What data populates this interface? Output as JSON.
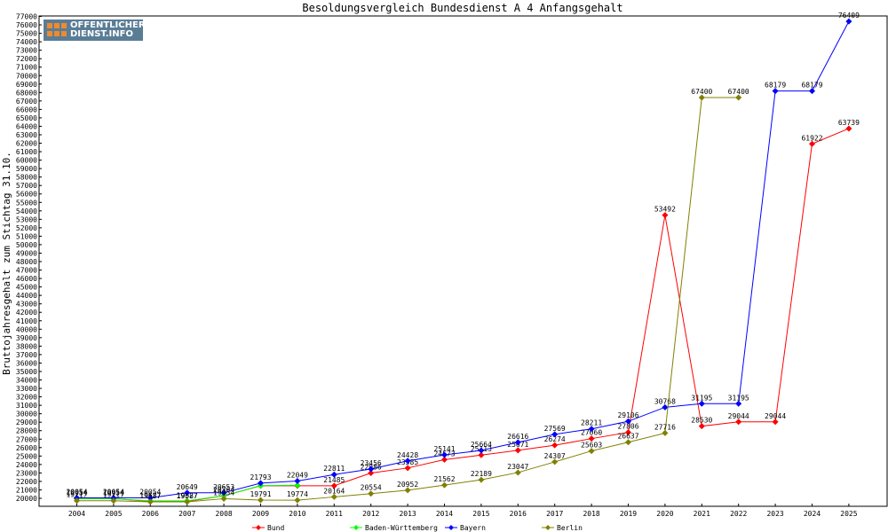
{
  "logo": {
    "line1": "OFFENTLICHER",
    "line2": "DIENST.INFO"
  },
  "chart_data": {
    "type": "line",
    "title": "Besoldungsvergleich Bundesdienst A 4 Anfangsgehalt",
    "ylabel": "Bruttojahresgehalt zum Stichtag 31.10.",
    "xlabel": "",
    "ylim": [
      20000,
      77000
    ],
    "ytick_step": 1000,
    "x": [
      "2004",
      "2005",
      "2006",
      "2007",
      "2008",
      "2009",
      "2010",
      "2011",
      "2012",
      "2013",
      "2014",
      "2015",
      "2016",
      "2017",
      "2018",
      "2019",
      "2020",
      "2021",
      "2022",
      "2023",
      "2024",
      "2025"
    ],
    "grid": false,
    "legend": "bottom",
    "series": [
      {
        "name": "Bund",
        "color": "#ff0000",
        "values": [
          19954,
          19954,
          19627,
          19627,
          20304,
          21485,
          21485,
          21485,
          22986,
          23585,
          24573,
          25113,
          25671,
          26274,
          27060,
          27806,
          53492,
          28530,
          29044,
          29044,
          61922,
          63739
        ],
        "labels": [
          "19954",
          "19954",
          "19627",
          "19627",
          "20304",
          "",
          "",
          "21485",
          "22986",
          "23585",
          "24573",
          "25113",
          "25671",
          "26274",
          "27060",
          "27806",
          "53492",
          "28530",
          "29044",
          "29044",
          "61922",
          "63739"
        ]
      },
      {
        "name": "Baden-Württemberg",
        "color": "#00ff00",
        "values": [
          19954,
          19954,
          19700,
          19700,
          20300,
          21490,
          21550,
          null,
          null,
          null,
          null,
          null,
          null,
          null,
          null,
          null,
          null,
          null,
          null,
          null,
          null,
          null
        ],
        "labels": [
          "",
          "",
          "",
          "",
          "",
          "",
          "",
          "",
          "",
          "",
          "",
          "",
          "",
          "",
          "",
          "",
          "",
          "",
          "",
          "",
          "",
          ""
        ]
      },
      {
        "name": "Bayern",
        "color": "#0000ff",
        "values": [
          20054,
          20054,
          20054,
          20649,
          20653,
          21793,
          22049,
          22811,
          23456,
          24428,
          25141,
          25664,
          26616,
          27569,
          28211,
          29106,
          30768,
          31195,
          31195,
          68179,
          68179,
          76409
        ],
        "labels": [
          "20054",
          "20054",
          "20054",
          "20649",
          "20653",
          "21793",
          "22049",
          "22811",
          "23456",
          "24428",
          "25141",
          "25664",
          "26616",
          "27569",
          "28211",
          "29106",
          "30768",
          "31195",
          "31195",
          "68179",
          "68179",
          "76409"
        ]
      },
      {
        "name": "Berlin",
        "color": "#808000",
        "values": [
          19717,
          19717,
          19587,
          19587,
          19954,
          19791,
          19774,
          20164,
          20554,
          20952,
          21562,
          22189,
          23047,
          24307,
          25603,
          26637,
          27716,
          67400,
          67400,
          null,
          null,
          null
        ],
        "labels": [
          "19717",
          "19717",
          "19587",
          "19587",
          "19954",
          "19791",
          "19774",
          "20164",
          "20554",
          "20952",
          "21562",
          "22189",
          "23047",
          "24307",
          "25603",
          "26637",
          "27716",
          "67400",
          "67400",
          "",
          "",
          ""
        ]
      }
    ]
  }
}
